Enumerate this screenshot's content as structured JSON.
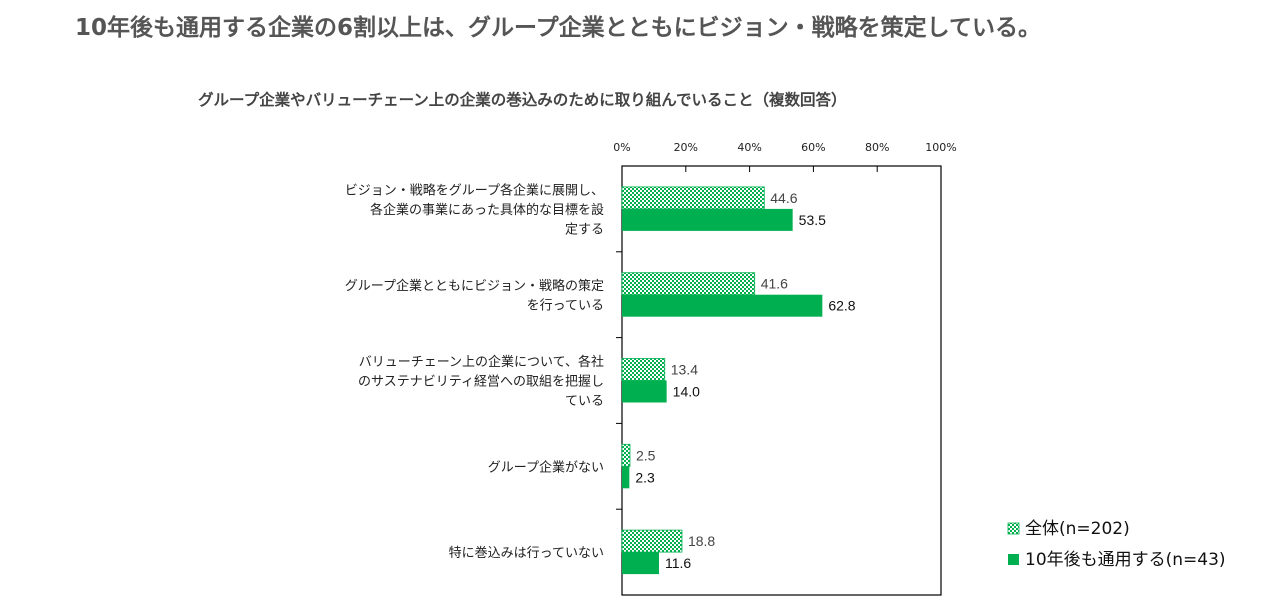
{
  "headline": "10年後も通用する企業の6割以上は、グループ企業とともにビジョン・戦略を策定している。",
  "chart_data": {
    "type": "bar",
    "orientation": "horizontal",
    "title": "グループ企業やバリューチェーン上の企業の巻込みのために取り組んでいること（複数回答）",
    "xlim": [
      0,
      100
    ],
    "ticks": [
      "0%",
      "20%",
      "40%",
      "60%",
      "80%",
      "100%"
    ],
    "tick_values": [
      0,
      20,
      40,
      60,
      80,
      100
    ],
    "categories": [
      [
        "ビジョン・戦略をグループ各企業に展開し、",
        "各企業の事業にあった具体的な目標を設",
        "定する"
      ],
      [
        "グループ企業とともにビジョン・戦略の策定",
        "を行っている"
      ],
      [
        "バリューチェーン上の企業について、各社",
        "のサステナビリティ経営への取組を把握し",
        "ている"
      ],
      [
        "グループ企業がない"
      ],
      [
        "特に巻込みは行っていない"
      ]
    ],
    "series": [
      {
        "name": "全体(n=202)",
        "values": [
          44.6,
          41.6,
          13.4,
          2.5,
          18.8
        ],
        "labels": [
          "44.6",
          "41.6",
          "13.4",
          "2.5",
          "18.8"
        ],
        "style": "hatched"
      },
      {
        "name": "10年後も通用する(n=43)",
        "values": [
          53.5,
          62.8,
          14.0,
          2.3,
          11.6
        ],
        "labels": [
          "53.5",
          "62.8",
          "14.0",
          "2.3",
          "11.6"
        ],
        "style": "solid"
      }
    ],
    "colors": {
      "accent": "#00b050",
      "hatch_light": "#ffffff",
      "frame": "#000000"
    },
    "legend_position": "bottom-right",
    "grid": false
  }
}
